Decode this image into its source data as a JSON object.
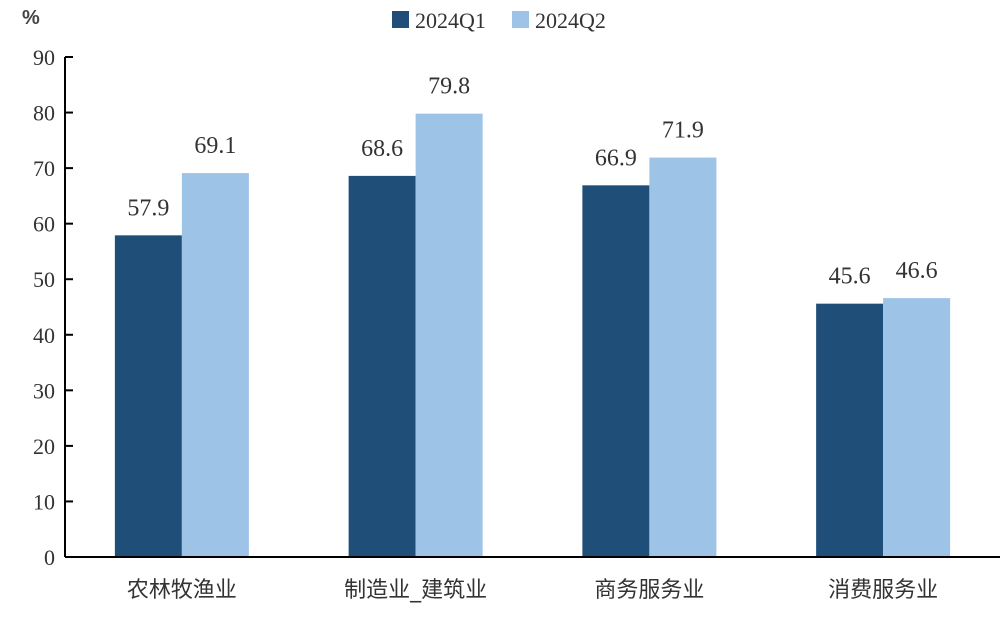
{
  "chart_data": {
    "type": "bar",
    "unit_label": "%",
    "categories": [
      "农林牧渔业",
      "制造业_建筑业",
      "商务服务业",
      "消费服务业"
    ],
    "series": [
      {
        "name": "2024Q1",
        "color": "#1f4e79",
        "values": [
          57.9,
          68.6,
          66.9,
          45.6
        ]
      },
      {
        "name": "2024Q2",
        "color": "#9dc3e6",
        "values": [
          69.1,
          79.8,
          71.9,
          46.6
        ]
      }
    ],
    "ylim": [
      0,
      90
    ],
    "yticks": [
      0,
      10,
      20,
      30,
      40,
      50,
      60,
      70,
      80,
      90
    ],
    "legend_position": "top-center",
    "grid": false
  }
}
